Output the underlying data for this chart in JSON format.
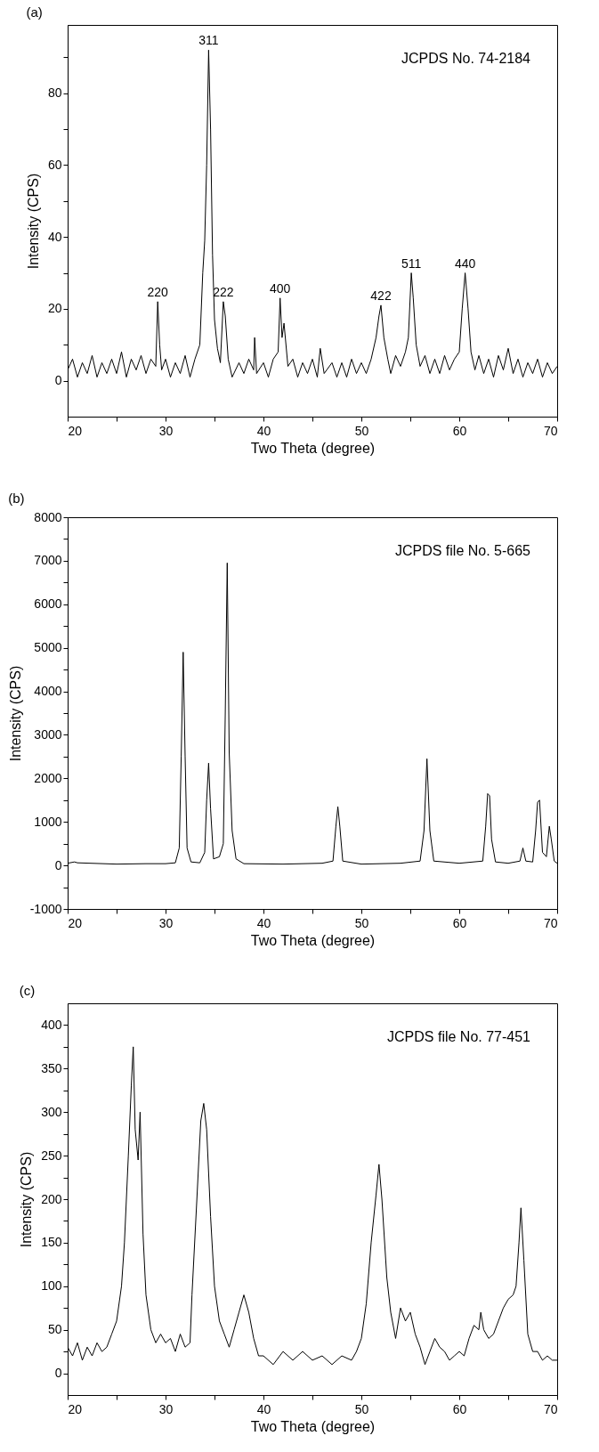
{
  "chart_data": [
    {
      "type": "line",
      "title": "(a)",
      "xlabel": "Two Theta (degree)",
      "ylabel": "Intensity (CPS)",
      "xlim": [
        20,
        70
      ],
      "ylim": [
        -10,
        99
      ],
      "xticks": [
        20,
        {
          "value": 25,
          "label": null
        },
        30,
        {
          "value": 35,
          "label": null
        },
        40,
        {
          "value": 45,
          "label": null
        },
        50,
        {
          "value": 55,
          "label": null
        },
        60,
        {
          "value": 65,
          "label": null
        },
        70
      ],
      "yticks": [
        0,
        {
          "value": 10,
          "label": null
        },
        20,
        {
          "value": 30,
          "label": null
        },
        40,
        {
          "value": 50,
          "label": null
        },
        60,
        {
          "value": 70,
          "label": null
        },
        80,
        {
          "value": 90,
          "label": null
        }
      ],
      "x": [
        20,
        20.5,
        21,
        21.5,
        22,
        22.5,
        23,
        23.5,
        24,
        24.5,
        25,
        25.5,
        26,
        26.5,
        27,
        27.5,
        28,
        28.5,
        29,
        29.2,
        29.4,
        29.6,
        30,
        30.5,
        31,
        31.5,
        32,
        32.5,
        33,
        33.5,
        33.8,
        34,
        34.2,
        34.4,
        34.6,
        34.8,
        35,
        35.3,
        35.6,
        35.9,
        36.1,
        36.4,
        36.8,
        37.5,
        38,
        38.5,
        39,
        39.1,
        39.3,
        40,
        40.5,
        41,
        41.5,
        41.7,
        41.9,
        42.1,
        42.5,
        43,
        43.5,
        44,
        44.5,
        45,
        45.5,
        45.8,
        46.2,
        47,
        47.5,
        48,
        48.5,
        49,
        49.5,
        50,
        50.5,
        51,
        51.5,
        51.8,
        52,
        52.3,
        52.7,
        53,
        53.5,
        54,
        54.5,
        54.8,
        55.1,
        55.3,
        55.6,
        56,
        56.5,
        57,
        57.5,
        58,
        58.5,
        59,
        59.5,
        60,
        60.3,
        60.6,
        60.9,
        61.2,
        61.6,
        62,
        62.5,
        63,
        63.5,
        64,
        64.5,
        65,
        65.5,
        66,
        66.5,
        67,
        67.5,
        68,
        68.5,
        69,
        69.5,
        70
      ],
      "series": [
        {
          "color": "#000000",
          "values": [
            3,
            6,
            1,
            5,
            2,
            7,
            1,
            5,
            2,
            6,
            2,
            8,
            1,
            6,
            3,
            7,
            2,
            6,
            4,
            22,
            10,
            3,
            6,
            1,
            5,
            2,
            7,
            1,
            6,
            10,
            30,
            39,
            60,
            92,
            70,
            35,
            17,
            9,
            5,
            22,
            18,
            6,
            1,
            5,
            2,
            6,
            3,
            12,
            2,
            5,
            1,
            6,
            8,
            23,
            12,
            16,
            4,
            6,
            1,
            5,
            2,
            6,
            1,
            9,
            2,
            5,
            1,
            5,
            1,
            6,
            2,
            5,
            2,
            6,
            12,
            18,
            21,
            12,
            6,
            2,
            7,
            4,
            8,
            12,
            30,
            23,
            10,
            4,
            7,
            2,
            6,
            2,
            7,
            3,
            6,
            8,
            20,
            30,
            20,
            8,
            3,
            7,
            2,
            6,
            1,
            7,
            3,
            9,
            2,
            6,
            1,
            5,
            2,
            6,
            1,
            5,
            2,
            4
          ]
        }
      ],
      "annotations": [
        "JCPDS No. 74-2184",
        {
          "text": "220",
          "x": 29.2,
          "y": 22
        },
        {
          "text": "311",
          "x": 34.4,
          "y": 92
        },
        {
          "text": "222",
          "x": 35.9,
          "y": 22
        },
        {
          "text": "400",
          "x": 41.7,
          "y": 23
        },
        {
          "text": "422",
          "x": 52,
          "y": 21
        },
        {
          "text": "511",
          "x": 55.1,
          "y": 30
        },
        {
          "text": "440",
          "x": 60.6,
          "y": 30
        }
      ]
    },
    {
      "type": "line",
      "title": "(b)",
      "xlabel": "Two Theta (degree)",
      "ylabel": "Intensity (CPS)",
      "xlim": [
        20,
        70
      ],
      "ylim": [
        -1000,
        8000
      ],
      "xticks": [
        20,
        {
          "value": 25,
          "label": null
        },
        30,
        {
          "value": 35,
          "label": null
        },
        40,
        {
          "value": 45,
          "label": null
        },
        50,
        {
          "value": 55,
          "label": null
        },
        60,
        {
          "value": 65,
          "label": null
        },
        70
      ],
      "yticks": [
        -1000,
        {
          "value": -500,
          "label": null
        },
        0,
        {
          "value": 500,
          "label": null
        },
        1000,
        {
          "value": 1500,
          "label": null
        },
        2000,
        {
          "value": 2500,
          "label": null
        },
        3000,
        {
          "value": 3500,
          "label": null
        },
        4000,
        {
          "value": 4500,
          "label": null
        },
        5000,
        {
          "value": 5500,
          "label": null
        },
        6000,
        {
          "value": 6500,
          "label": null
        },
        7000,
        {
          "value": 7500,
          "label": null
        },
        8000
      ],
      "x": [
        20,
        20.7,
        21,
        25,
        28,
        30,
        31,
        31.4,
        31.6,
        31.8,
        32,
        32.2,
        32.6,
        33.5,
        34,
        34.2,
        34.4,
        34.6,
        34.9,
        35.5,
        35.9,
        36.1,
        36.3,
        36.5,
        36.8,
        37.2,
        38,
        42,
        46,
        47.1,
        47.4,
        47.6,
        47.8,
        48.1,
        50,
        54,
        56,
        56.4,
        56.7,
        57,
        57.4,
        60,
        62.4,
        62.7,
        62.9,
        63.1,
        63.3,
        63.7,
        65,
        66.2,
        66.5,
        66.8,
        67.5,
        67.8,
        68,
        68.2,
        68.5,
        68.9,
        69.2,
        69.4,
        69.7,
        70
      ],
      "series": [
        {
          "color": "#000000",
          "values": [
            50,
            80,
            60,
            30,
            40,
            40,
            60,
            400,
            2500,
            4900,
            2500,
            400,
            80,
            60,
            300,
            1500,
            2350,
            1300,
            150,
            200,
            500,
            3500,
            6950,
            2600,
            800,
            150,
            40,
            30,
            50,
            100,
            900,
            1350,
            900,
            100,
            30,
            50,
            100,
            800,
            2450,
            800,
            100,
            50,
            100,
            900,
            1650,
            1600,
            600,
            80,
            50,
            100,
            400,
            100,
            80,
            800,
            1450,
            1500,
            300,
            200,
            900,
            600,
            100,
            50
          ]
        }
      ],
      "annotations": [
        "JCPDS file No. 5-665"
      ]
    },
    {
      "type": "line",
      "title": "(c)",
      "xlabel": "Two Theta (degree)",
      "ylabel": "Intensity (CPS)",
      "xlim": [
        20,
        70
      ],
      "ylim": [
        -25,
        425
      ],
      "xticks": [
        20,
        {
          "value": 25,
          "label": null
        },
        30,
        {
          "value": 35,
          "label": null
        },
        40,
        {
          "value": 45,
          "label": null
        },
        50,
        {
          "value": 55,
          "label": null
        },
        60,
        {
          "value": 65,
          "label": null
        },
        70
      ],
      "yticks": [
        0,
        {
          "value": 25,
          "label": null
        },
        50,
        {
          "value": 75,
          "label": null
        },
        100,
        {
          "value": 125,
          "label": null
        },
        150,
        {
          "value": 175,
          "label": null
        },
        200,
        {
          "value": 225,
          "label": null
        },
        250,
        {
          "value": 275,
          "label": null
        },
        300,
        {
          "value": 325,
          "label": null
        },
        350,
        {
          "value": 375,
          "label": null
        },
        400
      ],
      "x": [
        20,
        20.5,
        21,
        21.5,
        22,
        22.5,
        23,
        23.5,
        24,
        24.5,
        25,
        25.5,
        25.8,
        26.2,
        26.5,
        26.7,
        26.9,
        27.2,
        27.4,
        27.7,
        28,
        28.5,
        29,
        29.5,
        30,
        30.5,
        31,
        31.5,
        32,
        32.5,
        32.7,
        33.2,
        33.6,
        33.9,
        34.2,
        34.6,
        35,
        35.5,
        36,
        36.5,
        37,
        37.5,
        38,
        38.5,
        39,
        39.5,
        40,
        41,
        42,
        43,
        44,
        45,
        46,
        47,
        48,
        49,
        49.5,
        50,
        50.5,
        51,
        51.5,
        51.8,
        52.1,
        52.6,
        53,
        53.5,
        54,
        54.5,
        55,
        55.5,
        56,
        56.5,
        57,
        57.5,
        58,
        58.5,
        59,
        59.5,
        60,
        60.5,
        61,
        61.5,
        62,
        62.2,
        62.5,
        63,
        63.5,
        64,
        64.5,
        65,
        65.5,
        65.8,
        66.1,
        66.3,
        66.6,
        67,
        67.5,
        68,
        68.5,
        69,
        69.5,
        70
      ],
      "series": [
        {
          "color": "#000000",
          "values": [
            30,
            20,
            35,
            15,
            30,
            20,
            35,
            25,
            30,
            45,
            60,
            100,
            150,
            250,
            330,
            375,
            280,
            245,
            300,
            160,
            90,
            50,
            35,
            45,
            35,
            40,
            25,
            45,
            30,
            35,
            90,
            200,
            290,
            310,
            280,
            180,
            100,
            60,
            45,
            30,
            50,
            70,
            90,
            70,
            40,
            20,
            20,
            10,
            25,
            15,
            25,
            15,
            20,
            10,
            20,
            15,
            25,
            40,
            80,
            150,
            205,
            240,
            200,
            110,
            70,
            40,
            75,
            60,
            70,
            45,
            30,
            10,
            25,
            40,
            30,
            25,
            15,
            20,
            25,
            20,
            40,
            55,
            50,
            70,
            50,
            40,
            45,
            60,
            75,
            85,
            90,
            100,
            150,
            190,
            130,
            45,
            25,
            25,
            15,
            20,
            15,
            15
          ]
        }
      ],
      "annotations": [
        "JCPDS file No. 77-451"
      ]
    }
  ]
}
